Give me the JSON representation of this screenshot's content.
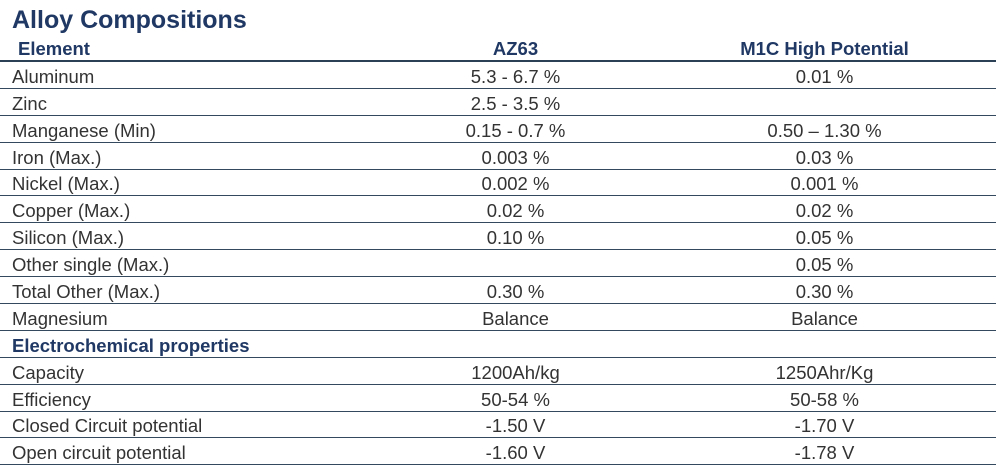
{
  "title": "Alloy Compositions",
  "headers": [
    "Element",
    "AZ63",
    "M1C High Potential"
  ],
  "composition_rows": [
    [
      "Aluminum",
      "5.3 - 6.7 %",
      "0.01 %"
    ],
    [
      "Zinc",
      "2.5 - 3.5 %",
      ""
    ],
    [
      "Manganese (Min)",
      "0.15 - 0.7 %",
      "0.50 – 1.30 %"
    ],
    [
      "Iron (Max.)",
      "0.003 %",
      "0.03 %"
    ],
    [
      "Nickel (Max.)",
      "0.002 %",
      "0.001 %"
    ],
    [
      "Copper (Max.)",
      "0.02 %",
      "0.02 %"
    ],
    [
      "Silicon (Max.)",
      "0.10 %",
      "0.05 %"
    ],
    [
      "Other single (Max.)",
      "",
      "0.05 %"
    ],
    [
      "Total Other (Max.)",
      "0.30 %",
      "0.30 %"
    ],
    [
      "Magnesium",
      "Balance",
      "Balance"
    ]
  ],
  "section_title": "Electrochemical properties",
  "electro_rows": [
    [
      "Capacity",
      "1200Ah/kg",
      "1250Ahr/Kg"
    ],
    [
      "Efficiency",
      "50-54 %",
      "50-58 %"
    ],
    [
      "Closed Circuit potential",
      "-1.50 V",
      "-1.70 V"
    ],
    [
      "Open circuit potential",
      "-1.60 V",
      "-1.78 V"
    ]
  ]
}
